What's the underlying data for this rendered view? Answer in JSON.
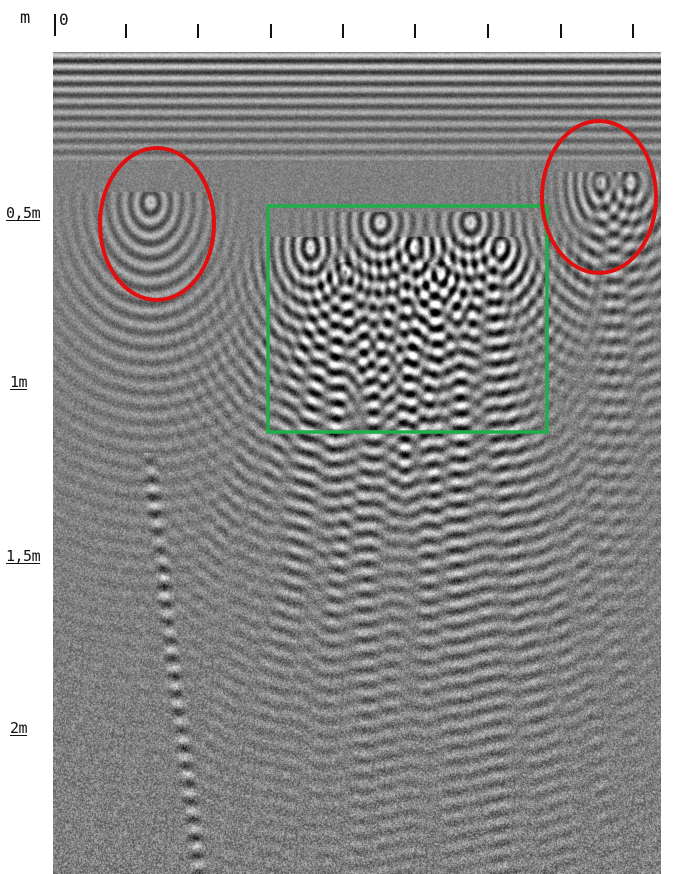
{
  "axis": {
    "unit_label": "m",
    "origin_label": "0",
    "depth_labels": [
      "0,5m",
      "1m",
      "1,5m",
      "2m"
    ]
  },
  "radargram": {
    "colormap": "grayscale",
    "hyperbola_apex_columns": [
      150,
      310,
      345,
      380,
      415,
      440,
      470,
      500,
      600,
      630
    ]
  },
  "annotations": [
    {
      "shape": "ellipse",
      "color": "#e01010"
    },
    {
      "shape": "rectangle",
      "color": "#1fae4a"
    },
    {
      "shape": "ellipse",
      "color": "#e01010"
    }
  ]
}
